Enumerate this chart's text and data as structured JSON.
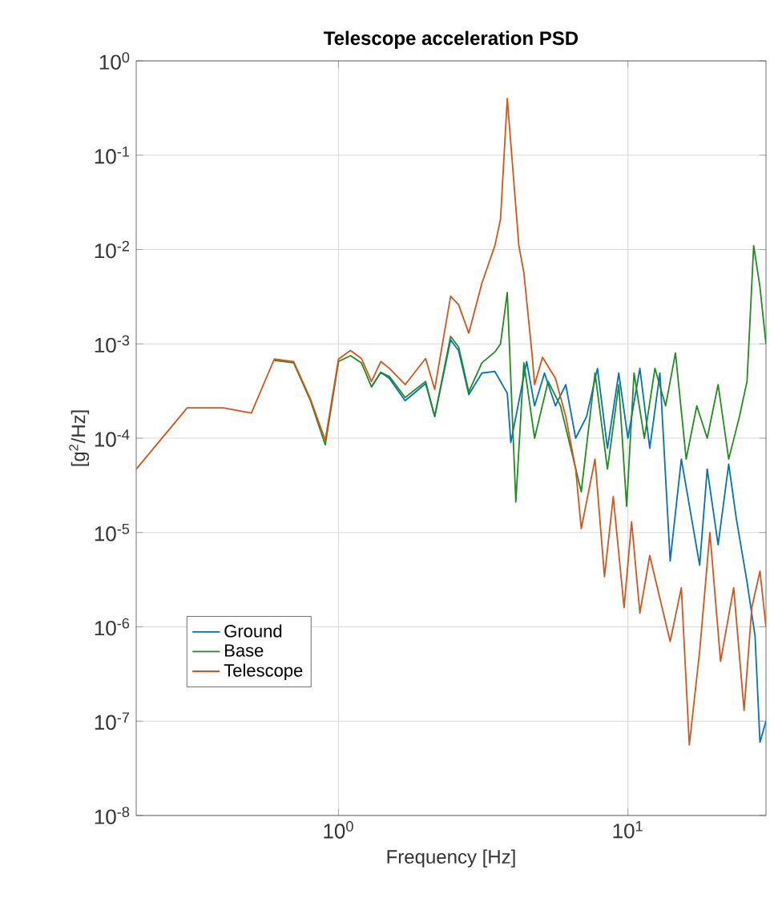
{
  "chart_data": {
    "type": "line",
    "title": "Telescope acceleration PSD",
    "xlabel": "Frequency [Hz]",
    "ylabel": "[g$^{2}$/Hz]",
    "log": "xy",
    "grid": true,
    "legend": "bottom left",
    "xlim": [
      0.2,
      30
    ],
    "ylim": [
      1e-08,
      1
    ],
    "xticks": [
      {
        "value": 1,
        "label": "10$^{0}$"
      },
      {
        "value": 10,
        "label": "10$^{1}$"
      }
    ],
    "yticks": [
      {
        "value": 1e-08,
        "label": "10$^{-8}$"
      },
      {
        "value": 1e-07,
        "label": "10$^{-7}$"
      },
      {
        "value": 1e-06,
        "label": "10$^{-6}$"
      },
      {
        "value": 1e-05,
        "label": "10$^{-5}$"
      },
      {
        "value": 0.0001,
        "label": "10$^{-4}$"
      },
      {
        "value": 0.001,
        "label": "10$^{-3}$"
      },
      {
        "value": 0.01,
        "label": "10$^{-2}$"
      },
      {
        "value": 0.1,
        "label": "10$^{-1}$"
      },
      {
        "value": 1,
        "label": "10$^{0}$"
      }
    ],
    "series": [
      {
        "name": "Ground",
        "color": "#0072bd",
        "x": [
          1.3,
          1.4,
          1.5,
          1.7,
          2.0,
          2.15,
          2.44,
          2.6,
          2.82,
          3.13,
          3.47,
          3.83,
          3.94,
          4.47,
          4.76,
          5.15,
          5.62,
          6.1,
          6.6,
          7.2,
          7.85,
          8.5,
          9.3,
          10,
          11,
          11.9,
          12.9,
          14,
          15.3,
          17.7,
          18.8,
          20.5,
          22.3,
          23.7,
          25.8,
          27.5,
          28.6,
          30
        ],
        "values": [
          0.00035,
          0.0005,
          0.00043,
          0.00025,
          0.00038,
          0.00017,
          0.0011,
          0.00085,
          0.00029,
          0.00049,
          0.00051,
          0.0003,
          9e-05,
          0.00065,
          0.00022,
          0.00049,
          0.00022,
          0.00037,
          0.0001,
          0.00017,
          0.00055,
          7.8e-05,
          0.00049,
          0.0001,
          0.00055,
          7.8e-05,
          0.00049,
          5e-06,
          6e-05,
          4.5e-06,
          4.7e-05,
          7.4e-06,
          5.3e-05,
          1.4e-05,
          3e-06,
          8e-07,
          6e-08,
          1e-07
        ]
      },
      {
        "name": "Base",
        "color": "#1f8c1f",
        "x": [
          0.6,
          0.7,
          0.8,
          0.9,
          1.0,
          1.1,
          1.2,
          1.3,
          1.4,
          1.5,
          1.7,
          2.0,
          2.15,
          2.44,
          2.6,
          2.82,
          3.13,
          3.47,
          3.63,
          3.83,
          4.1,
          4.37,
          4.76,
          5.3,
          5.85,
          6.35,
          6.9,
          7.7,
          8.5,
          9.3,
          9.9,
          10.5,
          11.4,
          12.4,
          13.5,
          14.6,
          15.9,
          17.3,
          18.8,
          20.5,
          22.3,
          24.3,
          25.8,
          27.2,
          28.6,
          30
        ],
        "values": [
          0.00067,
          0.00063,
          0.00025,
          8.5e-05,
          0.00065,
          0.00075,
          0.00063,
          0.00035,
          0.0005,
          0.00045,
          0.00027,
          0.0004,
          0.00017,
          0.0012,
          0.00093,
          0.00031,
          0.00063,
          0.00082,
          0.001,
          0.0035,
          2.1e-05,
          0.00063,
          0.0001,
          0.0004,
          0.00022,
          7.8e-05,
          2.7e-05,
          0.00049,
          4.7e-05,
          0.00037,
          1.9e-05,
          0.00049,
          0.0001,
          0.00055,
          0.00022,
          0.0008,
          6e-05,
          0.00022,
          0.0001,
          0.00037,
          6e-05,
          0.00017,
          0.0004,
          0.011,
          0.004,
          0.001
        ]
      },
      {
        "name": "Telescope",
        "color": "#d95319",
        "x": [
          0.2,
          0.3,
          0.4,
          0.5,
          0.6,
          0.7,
          0.8,
          0.9,
          1.0,
          1.1,
          1.2,
          1.3,
          1.4,
          1.5,
          1.7,
          2.0,
          2.15,
          2.44,
          2.6,
          2.82,
          3.13,
          3.47,
          3.63,
          3.83,
          4.2,
          4.37,
          4.66,
          4.76,
          5.07,
          5.62,
          6.1,
          6.6,
          6.9,
          7.7,
          8.3,
          8.9,
          9.7,
          10.3,
          11,
          11.9,
          12.9,
          14,
          15.3,
          16.3,
          17.7,
          19.2,
          20.9,
          23.2,
          25.2,
          26.8,
          28.6,
          30
        ],
        "values": [
          4.7e-05,
          0.00021,
          0.00021,
          0.000185,
          0.00069,
          0.00065,
          0.00026,
          9.5e-05,
          0.00069,
          0.00085,
          0.0007,
          0.0004,
          0.00065,
          0.00055,
          0.00037,
          0.0007,
          0.00033,
          0.0032,
          0.0026,
          0.0013,
          0.0044,
          0.011,
          0.021,
          0.4,
          0.011,
          0.0057,
          0.0008,
          0.00037,
          0.00072,
          0.00043,
          0.00017,
          4.7e-05,
          1.1e-05,
          6e-05,
          3.4e-06,
          2.4e-05,
          1.6e-06,
          1.3e-05,
          1.4e-06,
          5.7e-06,
          2e-06,
          7e-07,
          2.6e-06,
          5.6e-08,
          5.5e-07,
          1e-05,
          4.3e-07,
          2.6e-06,
          1.3e-07,
          1.6e-06,
          3.9e-06,
          1e-06
        ]
      }
    ]
  }
}
